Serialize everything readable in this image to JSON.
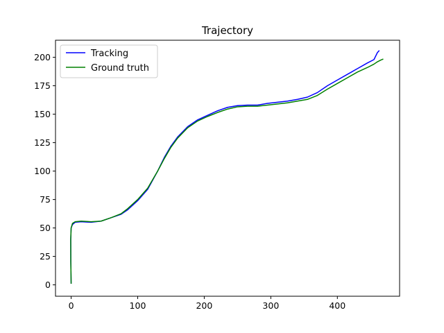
{
  "chart_data": {
    "type": "line",
    "title": "Trajectory",
    "xlabel": "",
    "ylabel": "",
    "xlim": [
      -23.5,
      493.5
    ],
    "ylim": [
      -10,
      215
    ],
    "xticks": [
      0,
      100,
      200,
      300,
      400
    ],
    "yticks": [
      0,
      25,
      50,
      75,
      100,
      125,
      150,
      175,
      200
    ],
    "grid": false,
    "legend_position": "top-left",
    "series": [
      {
        "name": "Tracking",
        "color": "#0000ff",
        "points": [
          [
            0,
            1
          ],
          [
            -0.5,
            20
          ],
          [
            -0.6,
            40
          ],
          [
            0,
            50
          ],
          [
            2,
            53
          ],
          [
            6,
            55
          ],
          [
            15,
            55.5
          ],
          [
            30,
            55
          ],
          [
            45,
            56
          ],
          [
            60,
            59
          ],
          [
            75,
            62
          ],
          [
            85,
            66
          ],
          [
            100,
            74
          ],
          [
            115,
            84
          ],
          [
            130,
            100
          ],
          [
            140,
            112
          ],
          [
            150,
            122
          ],
          [
            160,
            130
          ],
          [
            175,
            139
          ],
          [
            190,
            145
          ],
          [
            205,
            149
          ],
          [
            220,
            153
          ],
          [
            235,
            156
          ],
          [
            250,
            157.5
          ],
          [
            265,
            158
          ],
          [
            280,
            158
          ],
          [
            295,
            159.5
          ],
          [
            310,
            160.5
          ],
          [
            325,
            161.5
          ],
          [
            340,
            163
          ],
          [
            355,
            165
          ],
          [
            370,
            169
          ],
          [
            385,
            175
          ],
          [
            400,
            180
          ],
          [
            415,
            185
          ],
          [
            430,
            190
          ],
          [
            445,
            195
          ],
          [
            455,
            198
          ],
          [
            460,
            204
          ],
          [
            463,
            206
          ]
        ]
      },
      {
        "name": "Ground truth",
        "color": "#008000",
        "points": [
          [
            0,
            1
          ],
          [
            -0.5,
            20
          ],
          [
            -0.6,
            40
          ],
          [
            0,
            50
          ],
          [
            2,
            54
          ],
          [
            6,
            55.5
          ],
          [
            15,
            56
          ],
          [
            30,
            55.5
          ],
          [
            45,
            56
          ],
          [
            60,
            59
          ],
          [
            75,
            62.5
          ],
          [
            85,
            67
          ],
          [
            100,
            75
          ],
          [
            115,
            85
          ],
          [
            130,
            100
          ],
          [
            140,
            111
          ],
          [
            150,
            121
          ],
          [
            160,
            129
          ],
          [
            175,
            138
          ],
          [
            190,
            144
          ],
          [
            205,
            148
          ],
          [
            220,
            151.5
          ],
          [
            235,
            154.5
          ],
          [
            250,
            156.5
          ],
          [
            265,
            157
          ],
          [
            280,
            157
          ],
          [
            295,
            158
          ],
          [
            310,
            159
          ],
          [
            325,
            160
          ],
          [
            340,
            161.5
          ],
          [
            355,
            163
          ],
          [
            370,
            166.5
          ],
          [
            385,
            172
          ],
          [
            400,
            177
          ],
          [
            415,
            182
          ],
          [
            430,
            187
          ],
          [
            445,
            191
          ],
          [
            455,
            194
          ],
          [
            460,
            196
          ],
          [
            465,
            197.5
          ],
          [
            469,
            198.5
          ]
        ]
      }
    ]
  }
}
